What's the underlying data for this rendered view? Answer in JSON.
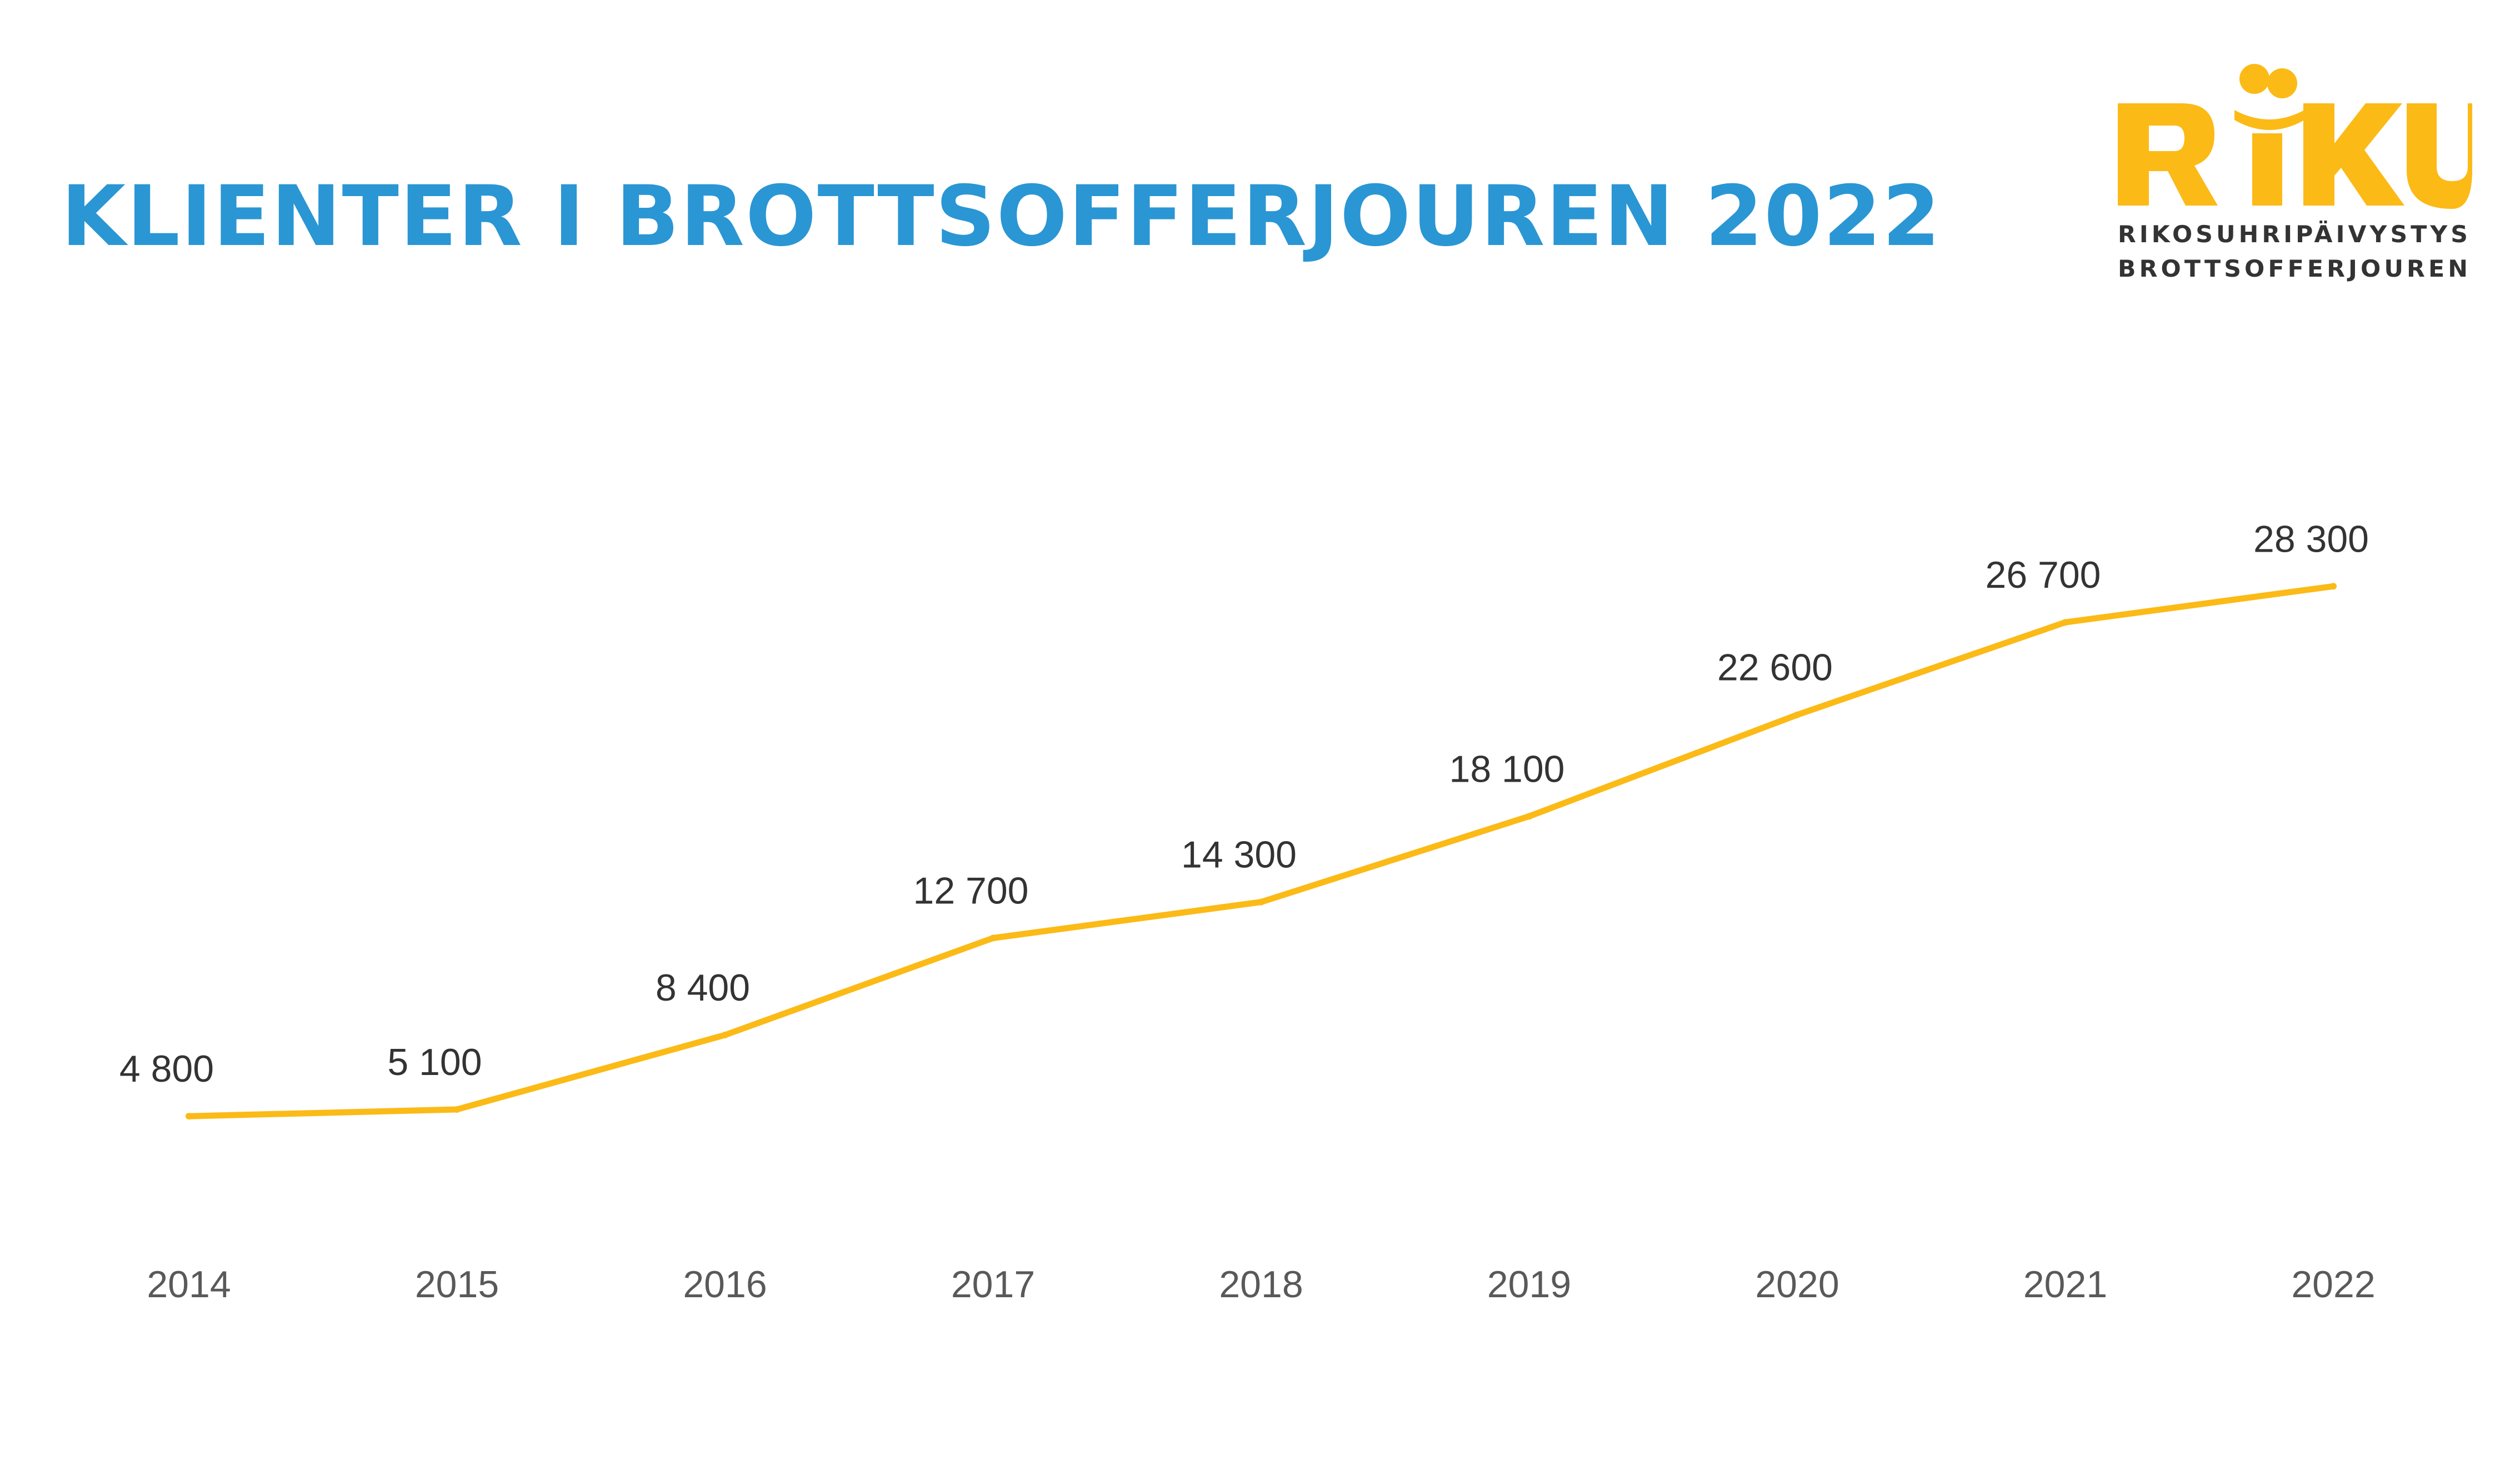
{
  "page": {
    "title": "KLIENTER I BROTTSOFFERJOUREN 2022"
  },
  "logo": {
    "wordmark": "RIKU",
    "line1": "RIKOSUHRIPÄIVYSTYS",
    "line2": "BROTTSOFFERJOUREN",
    "color": "#FBBA16"
  },
  "colors": {
    "title": "#2A96D4",
    "line": "#FBBA16",
    "data_label": "#333333",
    "tick_label": "#595959"
  },
  "chart_data": {
    "type": "line",
    "title": "KLIENTER I BROTTSOFFERJOUREN 2022",
    "xlabel": "",
    "ylabel": "",
    "grid": false,
    "legend": "none",
    "categories": [
      "2014",
      "2015",
      "2016",
      "2017",
      "2018",
      "2019",
      "2020",
      "2021",
      "2022"
    ],
    "series": [
      {
        "values": [
          4800,
          5100,
          8400,
          12700,
          14300,
          18100,
          22600,
          26700,
          28300
        ],
        "labels": [
          "4 800",
          "5 100",
          "8 400",
          "12 700",
          "14 300",
          "18 100",
          "22 600",
          "26 700",
          "28 300"
        ]
      }
    ],
    "ylim": [
      0,
      30000
    ]
  }
}
